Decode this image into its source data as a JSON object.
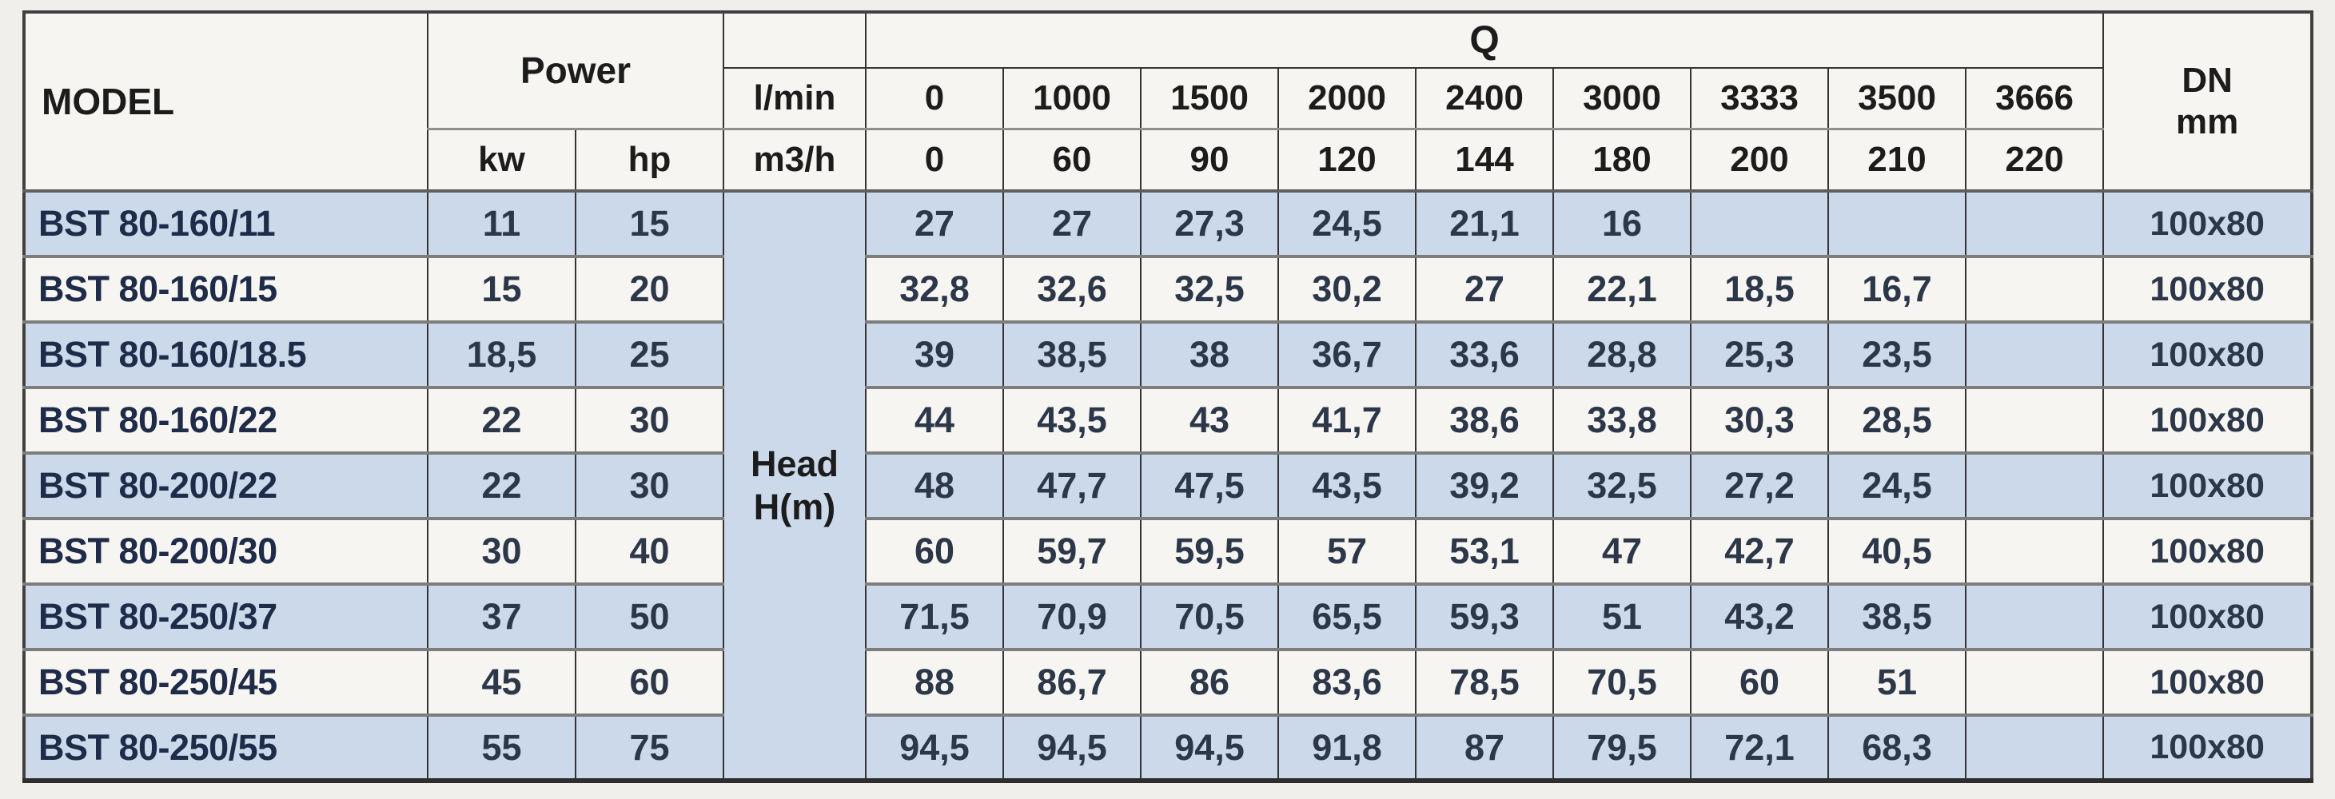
{
  "table": {
    "header": {
      "model": "MODEL",
      "power": "Power",
      "kw": "kw",
      "hp": "hp",
      "q": "Q",
      "unit_lmin": "l/min",
      "unit_m3h": "m3/h",
      "head_line1": "Head",
      "head_line2": "H(m)",
      "dn_line1": "DN",
      "dn_line2": "mm",
      "q_lmin": [
        "0",
        "1000",
        "1500",
        "2000",
        "2400",
        "3000",
        "3333",
        "3500",
        "3666"
      ],
      "q_m3h": [
        "0",
        "60",
        "90",
        "120",
        "144",
        "180",
        "200",
        "210",
        "220"
      ]
    },
    "rows": [
      {
        "model": "BST 80-160/11",
        "kw": "11",
        "hp": "15",
        "heads": [
          "27",
          "27",
          "27,3",
          "24,5",
          "21,1",
          "16",
          "",
          "",
          ""
        ],
        "dn": "100x80"
      },
      {
        "model": "BST 80-160/15",
        "kw": "15",
        "hp": "20",
        "heads": [
          "32,8",
          "32,6",
          "32,5",
          "30,2",
          "27",
          "22,1",
          "18,5",
          "16,7",
          ""
        ],
        "dn": "100x80"
      },
      {
        "model": "BST 80-160/18.5",
        "kw": "18,5",
        "hp": "25",
        "heads": [
          "39",
          "38,5",
          "38",
          "36,7",
          "33,6",
          "28,8",
          "25,3",
          "23,5",
          ""
        ],
        "dn": "100x80"
      },
      {
        "model": "BST 80-160/22",
        "kw": "22",
        "hp": "30",
        "heads": [
          "44",
          "43,5",
          "43",
          "41,7",
          "38,6",
          "33,8",
          "30,3",
          "28,5",
          ""
        ],
        "dn": "100x80"
      },
      {
        "model": "BST 80-200/22",
        "kw": "22",
        "hp": "30",
        "heads": [
          "48",
          "47,7",
          "47,5",
          "43,5",
          "39,2",
          "32,5",
          "27,2",
          "24,5",
          ""
        ],
        "dn": "100x80"
      },
      {
        "model": "BST 80-200/30",
        "kw": "30",
        "hp": "40",
        "heads": [
          "60",
          "59,7",
          "59,5",
          "57",
          "53,1",
          "47",
          "42,7",
          "40,5",
          ""
        ],
        "dn": "100x80"
      },
      {
        "model": "BST 80-250/37",
        "kw": "37",
        "hp": "50",
        "heads": [
          "71,5",
          "70,9",
          "70,5",
          "65,5",
          "59,3",
          "51",
          "43,2",
          "38,5",
          ""
        ],
        "dn": "100x80"
      },
      {
        "model": "BST 80-250/45",
        "kw": "45",
        "hp": "60",
        "heads": [
          "88",
          "86,7",
          "86",
          "83,6",
          "78,5",
          "70,5",
          "60",
          "51",
          ""
        ],
        "dn": "100x80"
      },
      {
        "model": "BST 80-250/55",
        "kw": "55",
        "hp": "75",
        "heads": [
          "94,5",
          "94,5",
          "94,5",
          "91,8",
          "87",
          "79,5",
          "72,1",
          "68,3",
          ""
        ],
        "dn": "100x80"
      }
    ],
    "colors": {
      "row_blue": "#cbd9ea",
      "row_white": "#f7f5f1",
      "model_text": "#1e2c49",
      "border_dark": "#343434",
      "border_gray": "#7d7d7d"
    }
  }
}
